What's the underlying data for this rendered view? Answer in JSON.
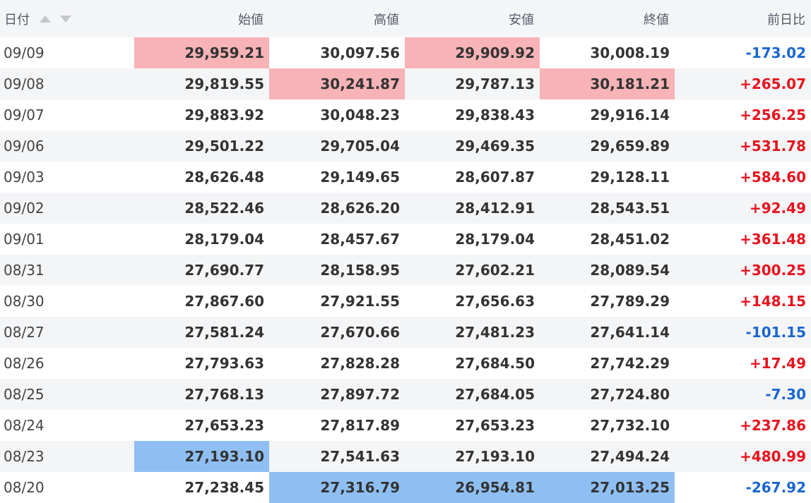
{
  "headers": {
    "date": "日付",
    "open": "始値",
    "high": "高値",
    "low": "安値",
    "close": "終値",
    "change": "前日比"
  },
  "icons": {
    "sort_up": "sort-ascending-icon",
    "sort_down": "sort-descending-icon"
  },
  "colors": {
    "highlight_high": "#f7b3b6",
    "highlight_low": "#8fbff2",
    "positive": "#e8121d",
    "negative": "#1a66d0"
  },
  "rows": [
    {
      "date": "09/09",
      "open": "29,959.21",
      "high": "30,097.56",
      "low": "29,909.92",
      "close": "30,008.19",
      "change": "-173.02"
    },
    {
      "date": "09/08",
      "open": "29,819.55",
      "high": "30,241.87",
      "low": "29,787.13",
      "close": "30,181.21",
      "change": "+265.07"
    },
    {
      "date": "09/07",
      "open": "29,883.92",
      "high": "30,048.23",
      "low": "29,838.43",
      "close": "29,916.14",
      "change": "+256.25"
    },
    {
      "date": "09/06",
      "open": "29,501.22",
      "high": "29,705.04",
      "low": "29,469.35",
      "close": "29,659.89",
      "change": "+531.78"
    },
    {
      "date": "09/03",
      "open": "28,626.48",
      "high": "29,149.65",
      "low": "28,607.87",
      "close": "29,128.11",
      "change": "+584.60"
    },
    {
      "date": "09/02",
      "open": "28,522.46",
      "high": "28,626.20",
      "low": "28,412.91",
      "close": "28,543.51",
      "change": "+92.49"
    },
    {
      "date": "09/01",
      "open": "28,179.04",
      "high": "28,457.67",
      "low": "28,179.04",
      "close": "28,451.02",
      "change": "+361.48"
    },
    {
      "date": "08/31",
      "open": "27,690.77",
      "high": "28,158.95",
      "low": "27,602.21",
      "close": "28,089.54",
      "change": "+300.25"
    },
    {
      "date": "08/30",
      "open": "27,867.60",
      "high": "27,921.55",
      "low": "27,656.63",
      "close": "27,789.29",
      "change": "+148.15"
    },
    {
      "date": "08/27",
      "open": "27,581.24",
      "high": "27,670.66",
      "low": "27,481.23",
      "close": "27,641.14",
      "change": "-101.15"
    },
    {
      "date": "08/26",
      "open": "27,793.63",
      "high": "27,828.28",
      "low": "27,684.50",
      "close": "27,742.29",
      "change": "+17.49"
    },
    {
      "date": "08/25",
      "open": "27,768.13",
      "high": "27,897.72",
      "low": "27,684.05",
      "close": "27,724.80",
      "change": "-7.30"
    },
    {
      "date": "08/24",
      "open": "27,653.23",
      "high": "27,817.89",
      "low": "27,653.23",
      "close": "27,732.10",
      "change": "+237.86"
    },
    {
      "date": "08/23",
      "open": "27,193.10",
      "high": "27,541.63",
      "low": "27,193.10",
      "close": "27,494.24",
      "change": "+480.99"
    },
    {
      "date": "08/20",
      "open": "27,238.45",
      "high": "27,316.79",
      "low": "26,954.81",
      "close": "27,013.25",
      "change": "-267.92"
    }
  ]
}
